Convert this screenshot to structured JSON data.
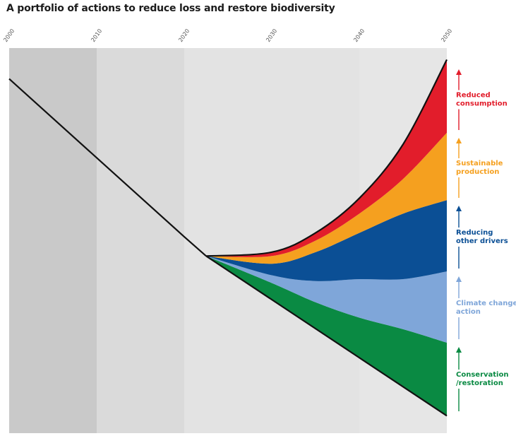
{
  "chart_data": {
    "type": "area",
    "title": "A portfolio of actions to reduce loss and restore biodiversity",
    "x_ticks": [
      "2000",
      "2010",
      "2020",
      "2030",
      "2040",
      "2050"
    ],
    "xlim": [
      2000,
      2050
    ],
    "ylim": [
      0,
      100
    ],
    "grid": false,
    "legend_position": "right",
    "historical_trend": {
      "name": "",
      "x": [
        2000,
        2010,
        2020,
        2022.5
      ],
      "values": [
        92,
        71.5,
        51,
        46
      ]
    },
    "baseline_trend": {
      "x": [
        2022.5,
        2050
      ],
      "values": [
        46,
        4.5
      ]
    },
    "turning_point_year": 2022.5,
    "series": [
      {
        "name": "Conservation /restoration",
        "x": [
          2022.5,
          2030,
          2035,
          2040,
          2045,
          2050
        ],
        "upper": [
          46,
          39,
          34,
          30,
          27,
          23.5
        ],
        "color": "#0a8a43"
      },
      {
        "name": "Climate change action",
        "x": [
          2022.5,
          2030,
          2035,
          2040,
          2045,
          2050
        ],
        "upper": [
          46,
          41,
          39.5,
          40,
          40,
          42
        ],
        "color": "#7fa6d9"
      },
      {
        "name": "Reducing other drivers",
        "x": [
          2022.5,
          2030,
          2035,
          2040,
          2045,
          2050
        ],
        "upper": [
          46,
          44,
          47,
          52,
          57,
          60.5
        ],
        "color": "#0b4f95"
      },
      {
        "name": "Sustainable production",
        "x": [
          2022.5,
          2030,
          2035,
          2040,
          2045,
          2050
        ],
        "upper": [
          46,
          46,
          50,
          57,
          66,
          78
        ],
        "color": "#f5a01f"
      },
      {
        "name": "Reduced consumption",
        "x": [
          2022.5,
          2030,
          2035,
          2040,
          2045,
          2050
        ],
        "upper": [
          46,
          47,
          52,
          61,
          75,
          97
        ],
        "color": "#e21d2b"
      }
    ],
    "background_bands": [
      {
        "from": 2000,
        "to": 2010,
        "color": "#c9c9c9"
      },
      {
        "from": 2010,
        "to": 2020,
        "color": "#dadada"
      },
      {
        "from": 2020,
        "to": 2040,
        "color": "#e3e3e3"
      },
      {
        "from": 2040,
        "to": 2050,
        "color": "#e6e6e6"
      }
    ],
    "legend": [
      {
        "label_lines": [
          "Reduced",
          "consumption"
        ],
        "color": "#e21d2b"
      },
      {
        "label_lines": [
          "Sustainable",
          "production"
        ],
        "color": "#f5a01f"
      },
      {
        "label_lines": [
          "Reducing",
          "other drivers"
        ],
        "color": "#0b4f95"
      },
      {
        "label_lines": [
          "Climate change",
          "action"
        ],
        "color": "#7fa6d9"
      },
      {
        "label_lines": [
          "Conservation",
          "/restoration"
        ],
        "color": "#0a8a43"
      }
    ]
  }
}
